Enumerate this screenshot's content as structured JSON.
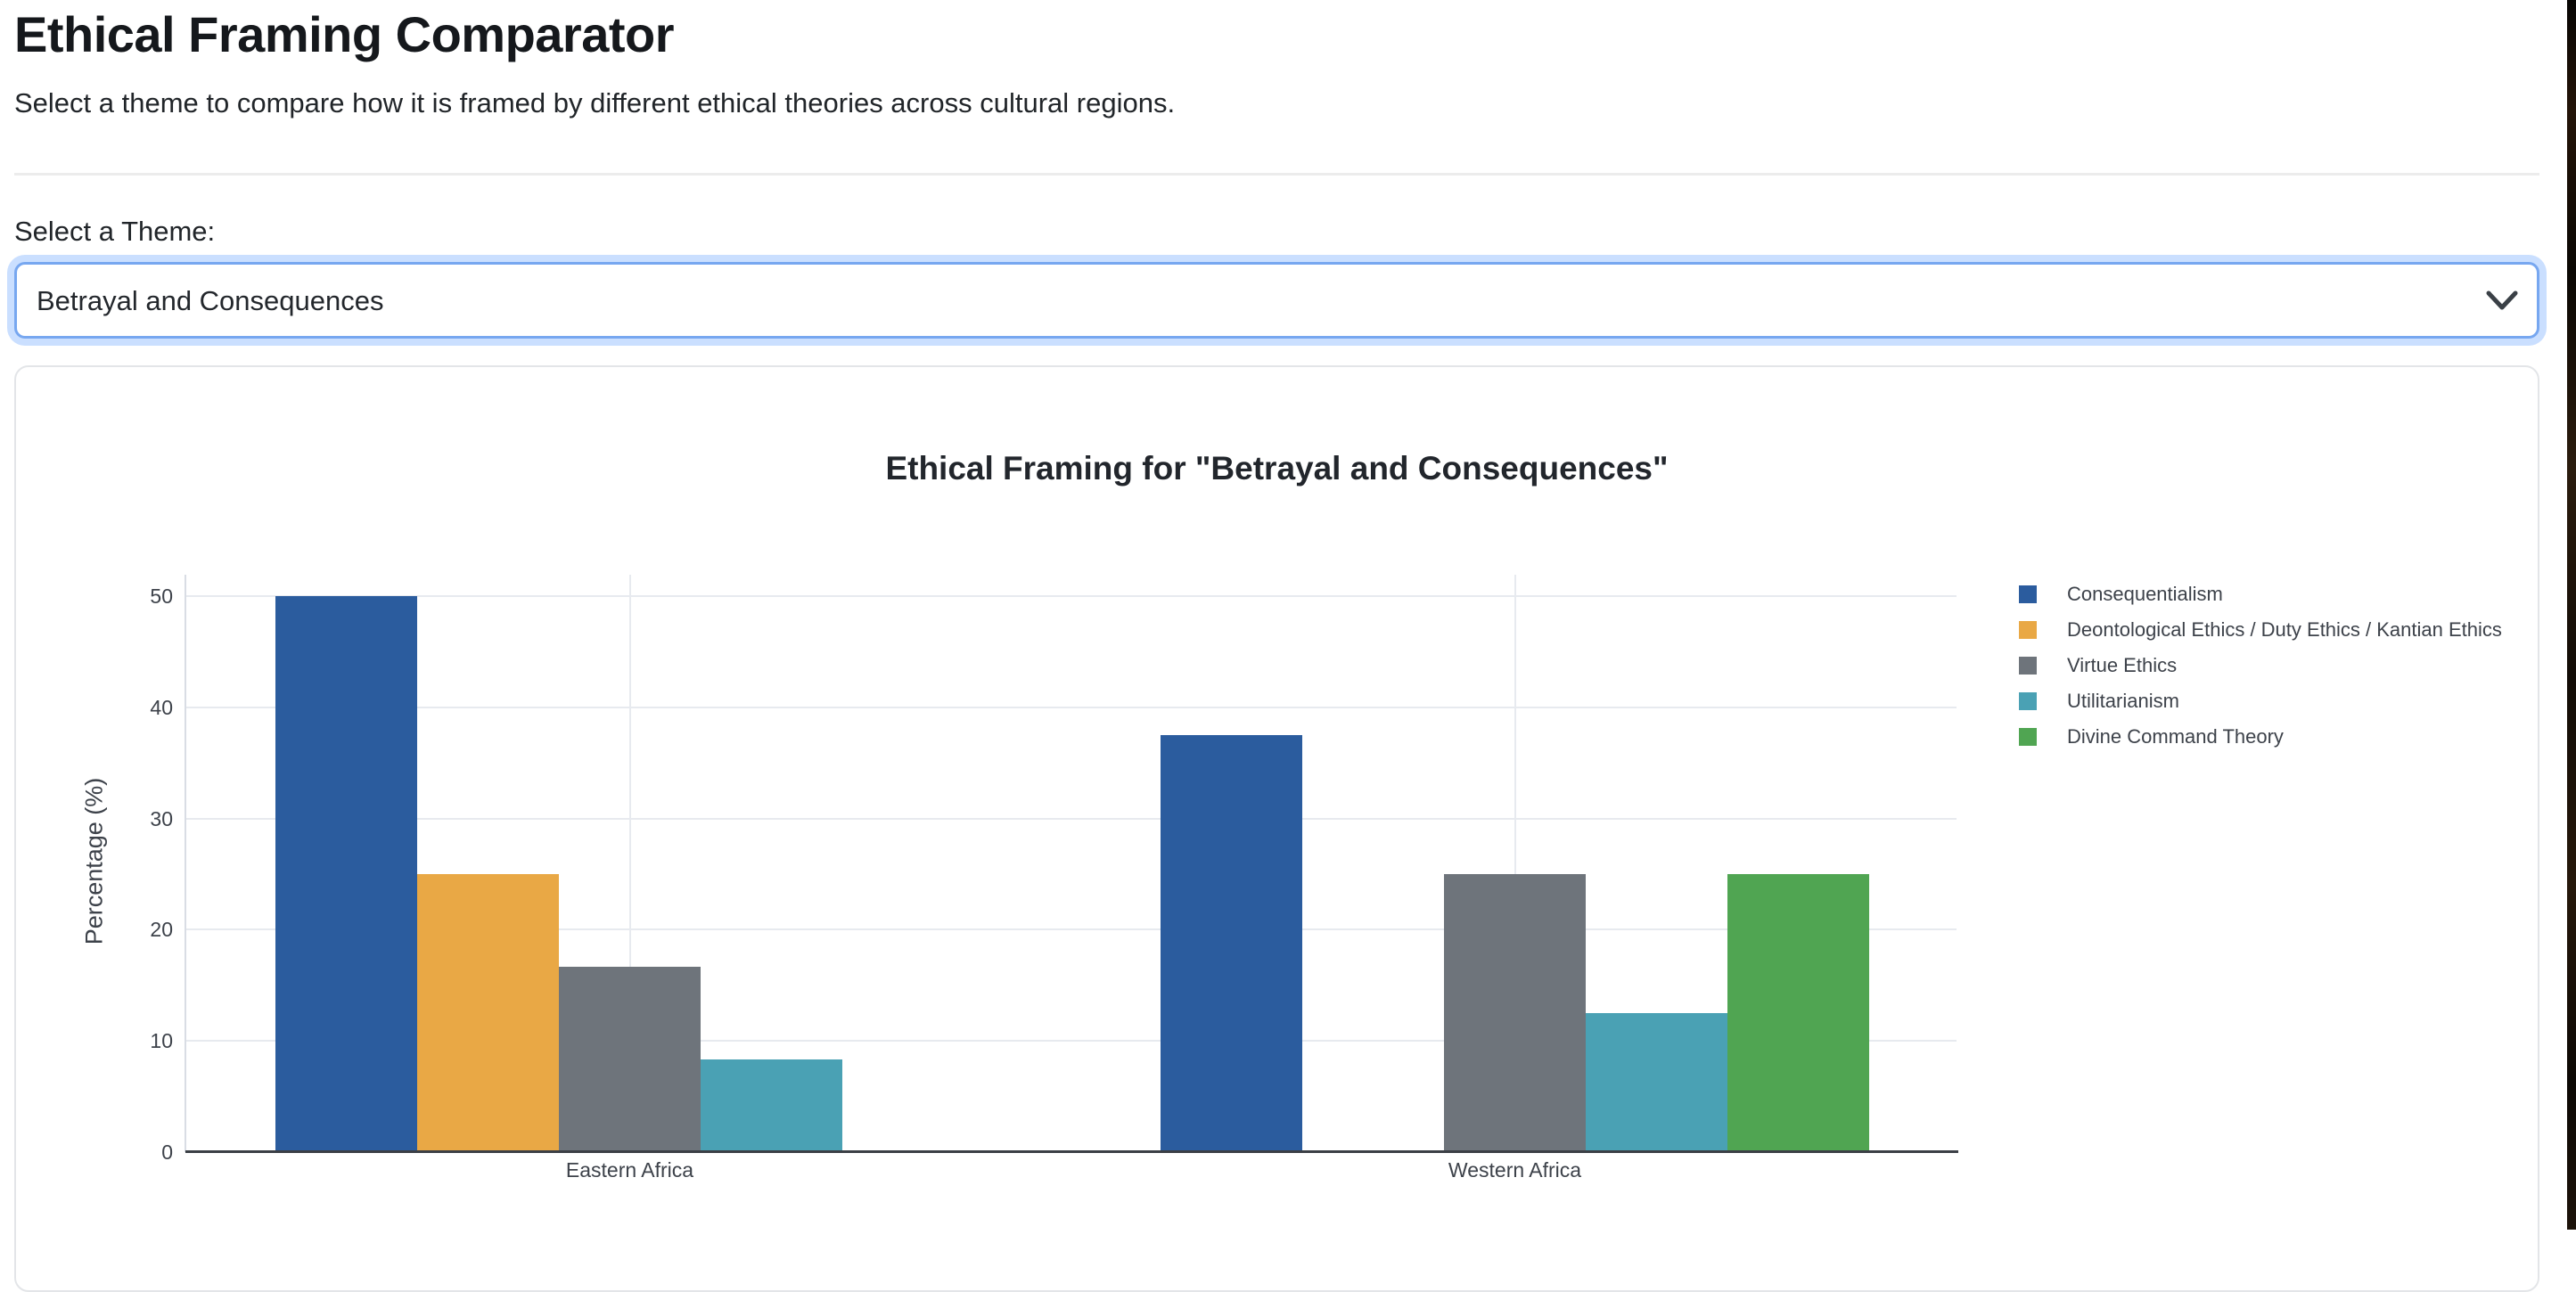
{
  "page": {
    "title": "Ethical Framing Comparator",
    "subtitle": "Select a theme to compare how it is framed by different ethical theories across cultural regions.",
    "theme_label": "Select a Theme:",
    "theme_select": {
      "value": "Betrayal and Consequences"
    }
  },
  "chart_data": {
    "type": "bar",
    "title": "Ethical Framing for \"Betrayal and Consequences\"",
    "categories": [
      "Eastern Africa",
      "Western Africa"
    ],
    "series": [
      {
        "name": "Consequentialism",
        "color": "#2b5c9e",
        "values": [
          50,
          37.5
        ]
      },
      {
        "name": "Deontological Ethics / Duty Ethics / Kantian Ethics",
        "color": "#e9a845",
        "values": [
          25,
          null
        ]
      },
      {
        "name": "Virtue Ethics",
        "color": "#6e747b",
        "values": [
          16.67,
          25
        ]
      },
      {
        "name": "Utilitarianism",
        "color": "#4aa1b4",
        "values": [
          8.33,
          12.5
        ]
      },
      {
        "name": "Divine Command Theory",
        "color": "#50a552",
        "values": [
          null,
          25
        ]
      }
    ],
    "xlabel": "",
    "ylabel": "Percentage (%)",
    "ylim": [
      0,
      50
    ],
    "yticks": [
      0,
      10,
      20,
      30,
      40,
      50
    ],
    "grid": true,
    "legend_position": "right",
    "colors": {
      "axis_line": "#3b3f45",
      "gridline": "#e7eaef",
      "chart_text": "#3d424a"
    }
  }
}
